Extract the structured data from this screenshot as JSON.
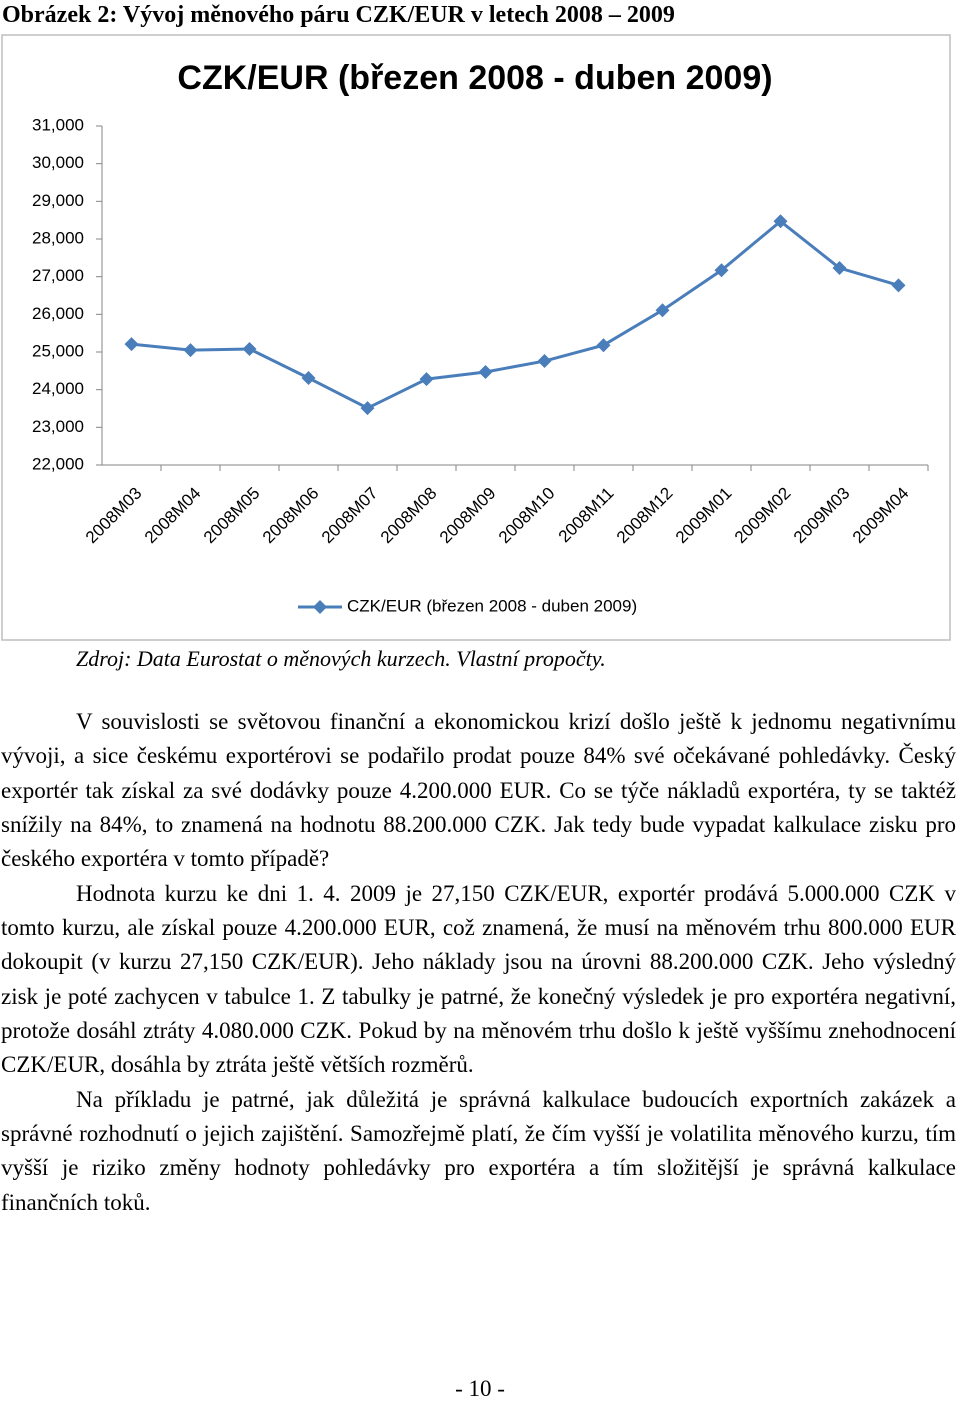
{
  "caption": "Obrázek 2: Vývoj měnového páru CZK/EUR v letech 2008 – 2009",
  "chart_data": {
    "type": "line",
    "title": "CZK/EUR (březen 2008 - duben 2009)",
    "categories": [
      "2008M03",
      "2008M04",
      "2008M05",
      "2008M06",
      "2008M07",
      "2008M08",
      "2008M09",
      "2008M10",
      "2008M11",
      "2008M12",
      "2009M01",
      "2009M02",
      "2009M03",
      "2009M04"
    ],
    "series": [
      {
        "name": "CZK/EUR (březen 2008 - duben 2009)",
        "color": "#4a7ebb",
        "values": [
          25.21,
          25.05,
          25.08,
          24.31,
          23.51,
          24.28,
          24.47,
          24.76,
          25.18,
          26.11,
          27.17,
          28.47,
          27.23,
          26.77
        ]
      }
    ],
    "ylim": [
      22,
      31
    ],
    "yticks": [
      {
        "value": 22,
        "label": "22,000"
      },
      {
        "value": 23,
        "label": "23,000"
      },
      {
        "value": 24,
        "label": "24,000"
      },
      {
        "value": 25,
        "label": "25,000"
      },
      {
        "value": 26,
        "label": "26,000"
      },
      {
        "value": 27,
        "label": "27,000"
      },
      {
        "value": 28,
        "label": "28,000"
      },
      {
        "value": 29,
        "label": "29,000"
      },
      {
        "value": 30,
        "label": "30,000"
      },
      {
        "value": 31,
        "label": "31,000"
      }
    ],
    "grid": false,
    "legend": "bottom"
  },
  "source": "Zdroj: Data Eurostat o měnových kurzech. Vlastní propočty.",
  "paragraphs": [
    "V souvislosti se světovou finanční a ekonomickou krizí došlo ještě k jednomu negativnímu vývoji, a sice českému exportérovi se podařilo prodat pouze 84% své očekávané pohledávky. Český exportér tak získal za své dodávky pouze 4.200.000 EUR. Co se týče nákladů exportéra, ty se taktéž snížily na 84%, to znamená na hodnotu 88.200.000 CZK. Jak tedy bude vypadat kalkulace zisku pro českého exportéra v tomto případě?",
    "Hodnota kurzu ke dni 1. 4. 2009 je 27,150 CZK/EUR, exportér prodává 5.000.000 CZK v tomto kurzu, ale získal pouze 4.200.000 EUR, což znamená, že musí na měnovém trhu 800.000 EUR dokoupit (v kurzu 27,150 CZK/EUR). Jeho náklady jsou na úrovni 88.200.000 CZK. Jeho výsledný zisk je poté zachycen v tabulce 1. Z tabulky je patrné, že konečný výsledek je pro exportéra negativní, protože dosáhl ztráty 4.080.000 CZK. Pokud by na měnovém trhu došlo k ještě vyššímu znehodnocení CZK/EUR, dosáhla by ztráta ještě větších rozměrů.",
    "Na příkladu je patrné, jak důležitá je správná kalkulace budoucích exportních zakázek a správné rozhodnutí o jejich zajištění. Samozřejmě platí, že čím vyšší je volatilita měnového kurzu, tím vyšší je riziko změny hodnoty pohledávky pro exportéra a tím složitější je správná kalkulace finančních toků."
  ],
  "page_number": "- 10 -"
}
